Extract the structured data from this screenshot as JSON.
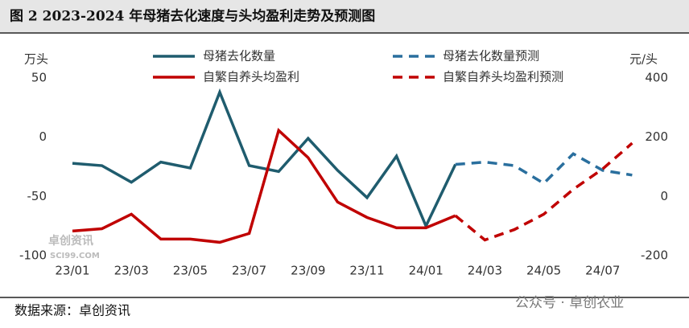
{
  "chart_data": {
    "type": "line",
    "title": "图 2 2023-2024 年母猪去化速度与头均盈利走势及预测图",
    "y_label": "万头",
    "y2_label": "元/头",
    "source": "数据来源：卓创资讯",
    "watermarks": [
      "卓创资讯",
      "SCI99.COM",
      "公众号 · 卓创农业"
    ],
    "categories": [
      "23/01",
      null,
      "23/03",
      null,
      "23/05",
      null,
      "23/07",
      null,
      "23/09",
      null,
      "23/11",
      null,
      "24/01",
      null,
      "24/03",
      null,
      "24/05",
      null,
      "24/07",
      null
    ],
    "ylim": [
      -100,
      50
    ],
    "yticks": [
      50,
      0,
      -50,
      -100
    ],
    "y2lim": [
      -200,
      400
    ],
    "y2ticks": [
      400,
      200,
      0,
      -200
    ],
    "series": [
      {
        "name": "母猪去化数量",
        "color": "#1f5c6e",
        "dashed": false,
        "values": [
          -22,
          -24,
          -38,
          -21,
          -26,
          38,
          -24,
          -29,
          -1,
          -28,
          -51,
          -16,
          -75,
          -23,
          null,
          null,
          null,
          null,
          null,
          null
        ]
      },
      {
        "name": "母猪去化数量预测",
        "color": "#2a6f9e",
        "dashed": true,
        "values": [
          null,
          null,
          null,
          null,
          null,
          null,
          null,
          null,
          null,
          null,
          null,
          null,
          null,
          -23,
          -21,
          -24,
          -39,
          -14,
          -28,
          -32
        ]
      },
      {
        "name": "自繁自养头均盈利",
        "color": "#c00000",
        "dashed": false,
        "axis": "y2",
        "values": [
          -117,
          -109,
          -60,
          -144,
          -144,
          -155,
          -125,
          223,
          131,
          -19,
          -71,
          -106,
          -106,
          -65,
          null,
          null,
          null,
          null,
          null,
          null
        ]
      },
      {
        "name": "自繁自养头均盈利预测",
        "color": "#c00000",
        "dashed": true,
        "axis": "y2",
        "values": [
          null,
          null,
          null,
          null,
          null,
          null,
          null,
          null,
          null,
          null,
          null,
          null,
          null,
          -65,
          -147,
          -112,
          -60,
          24,
          93,
          180
        ]
      }
    ]
  }
}
